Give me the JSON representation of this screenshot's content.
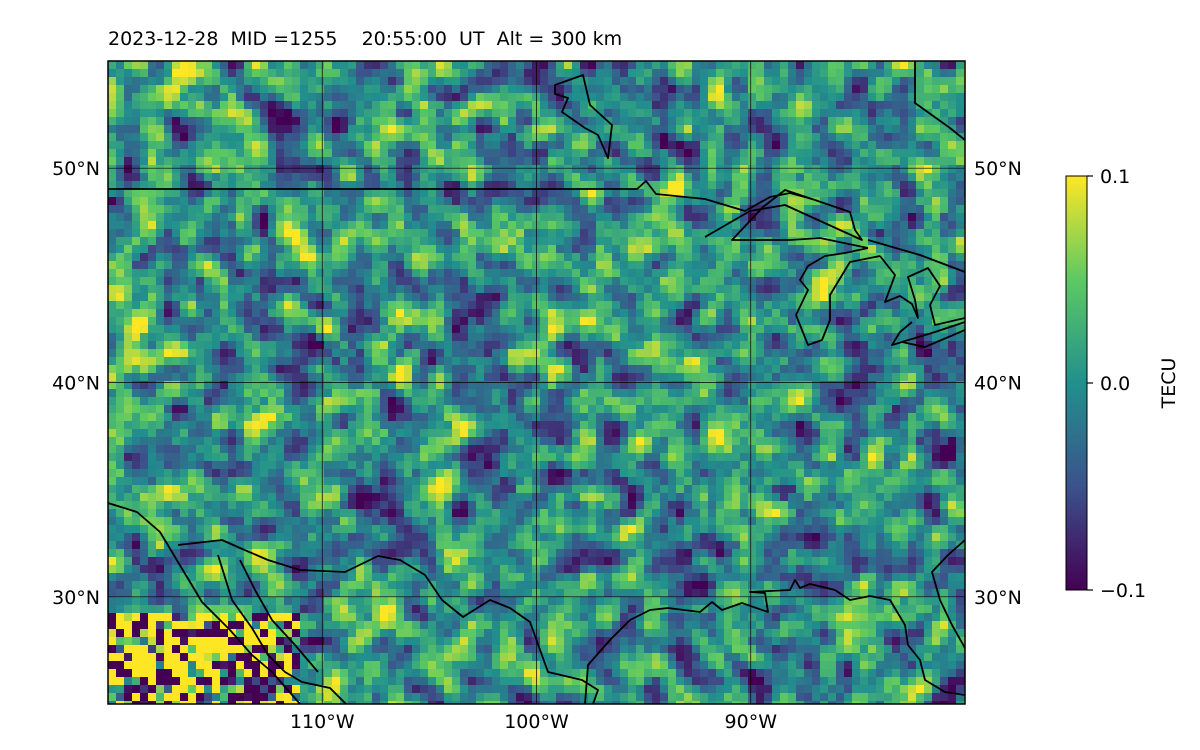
{
  "title": "2023-12-28  MID =1255    20:55:00  UT  Alt = 300 km",
  "map": {
    "lon_range": [
      -120,
      -80
    ],
    "lat_range": [
      25,
      55
    ],
    "lon_ticks": [
      {
        "value": -110,
        "label": "110°W"
      },
      {
        "value": -100,
        "label": "100°W"
      },
      {
        "value": -90,
        "label": "90°W"
      }
    ],
    "lat_ticks": [
      {
        "value": 50,
        "label": "50°N"
      },
      {
        "value": 40,
        "label": "40°N"
      },
      {
        "value": 30,
        "label": "30°N"
      }
    ],
    "colormap": "viridis",
    "colormap_stops": [
      "#440154",
      "#3b528b",
      "#21908d",
      "#5dc963",
      "#fde725"
    ]
  },
  "colorbar": {
    "label": "TECU",
    "range": [
      -0.1,
      0.1
    ],
    "ticks": [
      {
        "value": 0.1,
        "label": "0.1"
      },
      {
        "value": 0.0,
        "label": "0.0"
      },
      {
        "value": -0.1,
        "label": "−0.1"
      }
    ]
  }
}
